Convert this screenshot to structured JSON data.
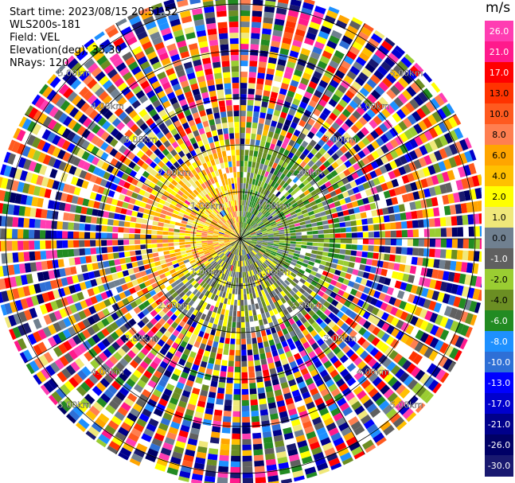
{
  "header": {
    "start_time": "Start time: 2023/08/15 20:51:52",
    "instrument": "WLS200s-181",
    "field": "Field: VEL",
    "elevation": "Elevation(deg): 35.30",
    "nrays": "NRays: 120"
  },
  "chart_data": {
    "type": "heatmap",
    "projection": "polar-ppi",
    "title": "",
    "rings_km": [
      1.0,
      2.0,
      3.0,
      4.0,
      5.0
    ],
    "ring_labels": [
      "1.00km",
      "2.00km",
      "3.00km",
      "4.00km",
      "5.00km"
    ],
    "max_range_km": 5.3,
    "n_rays": 120,
    "colorbar": {
      "unit": "m/s",
      "tick_labels": [
        "26.0",
        "21.0",
        "17.0",
        "13.0",
        "10.0",
        "8.0",
        "6.0",
        "4.0",
        "2.0",
        "1.0",
        "0.0",
        "-1.0",
        "-2.0",
        "-4.0",
        "-6.0",
        "-8.0",
        "-10.0",
        "-13.0",
        "-17.0",
        "-21.0",
        "-26.0",
        "-30.0"
      ],
      "bins": [
        {
          "from": 26,
          "to": 30,
          "color": "#ff3db2"
        },
        {
          "from": 21,
          "to": 26,
          "color": "#ff1a8c"
        },
        {
          "from": 17,
          "to": 21,
          "color": "#ff0000"
        },
        {
          "from": 13,
          "to": 17,
          "color": "#ff3300"
        },
        {
          "from": 10,
          "to": 13,
          "color": "#ff5a1f"
        },
        {
          "from": 8,
          "to": 10,
          "color": "#ff7f50"
        },
        {
          "from": 6,
          "to": 8,
          "color": "#ffa500"
        },
        {
          "from": 4,
          "to": 6,
          "color": "#ffc000"
        },
        {
          "from": 2,
          "to": 4,
          "color": "#ffff00"
        },
        {
          "from": 1,
          "to": 2,
          "color": "#f0e87a"
        },
        {
          "from": 0,
          "to": 1,
          "color": "#708090"
        },
        {
          "from": -1,
          "to": 0,
          "color": "#606060"
        },
        {
          "from": -2,
          "to": -1,
          "color": "#9acd32"
        },
        {
          "from": -4,
          "to": -2,
          "color": "#6b8e23"
        },
        {
          "from": -6,
          "to": -4,
          "color": "#228b22"
        },
        {
          "from": -8,
          "to": -6,
          "color": "#1e90ff"
        },
        {
          "from": -10,
          "to": -8,
          "color": "#2e6fd6"
        },
        {
          "from": -13,
          "to": -10,
          "color": "#0000ff"
        },
        {
          "from": -17,
          "to": -13,
          "color": "#0000cd"
        },
        {
          "from": -21,
          "to": -17,
          "color": "#00008b"
        },
        {
          "from": -26,
          "to": -21,
          "color": "#000066"
        },
        {
          "from": -30,
          "to": -26,
          "color": "#191970"
        }
      ]
    },
    "inner_region": {
      "west_half_colors": [
        "#ffa500",
        "#ff7f50",
        "#ffff00",
        "#ffc000",
        "#f0e87a"
      ],
      "east_half_colors": [
        "#228b22",
        "#6b8e23",
        "#9acd32",
        "#708090"
      ],
      "south_colors": [
        "#ffff00",
        "#708090",
        "#6b8e23",
        "#606060"
      ]
    },
    "grid": true
  }
}
